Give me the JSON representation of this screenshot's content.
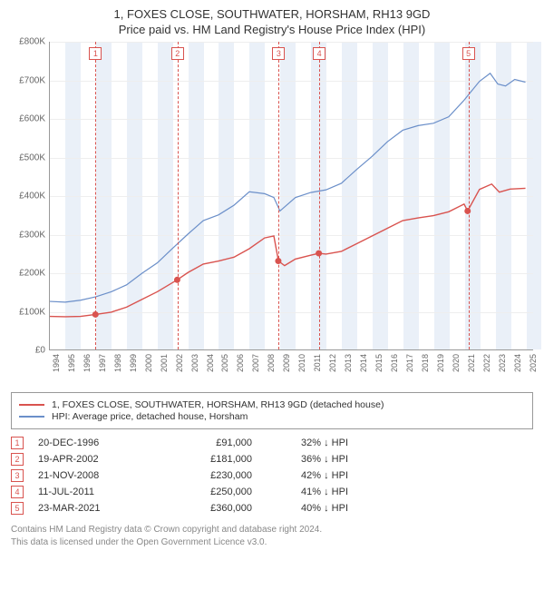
{
  "title_line1": "1, FOXES CLOSE, SOUTHWATER, HORSHAM, RH13 9GD",
  "title_line2": "Price paid vs. HM Land Registry's House Price Index (HPI)",
  "chart": {
    "type": "line",
    "background_color": "#ffffff",
    "band_color": "#eaf0f8",
    "grid_color": "#eeeeee",
    "axis_color": "#999999",
    "x_years": [
      1994,
      1995,
      1996,
      1997,
      1998,
      1999,
      2000,
      2001,
      2002,
      2003,
      2004,
      2005,
      2006,
      2007,
      2008,
      2009,
      2010,
      2011,
      2012,
      2013,
      2014,
      2015,
      2016,
      2017,
      2018,
      2019,
      2020,
      2021,
      2022,
      2023,
      2024,
      2025
    ],
    "x_min": 1994,
    "x_max": 2025.5,
    "y_min": 0,
    "y_max": 800000,
    "y_step": 100000,
    "y_tick_labels": [
      "£0",
      "£100K",
      "£200K",
      "£300K",
      "£400K",
      "£500K",
      "£600K",
      "£700K",
      "£800K"
    ],
    "series": [
      {
        "name": "price_paid",
        "color": "#d9534f",
        "width": 1.4,
        "data": [
          [
            1994.0,
            86000
          ],
          [
            1995.0,
            85000
          ],
          [
            1996.0,
            86000
          ],
          [
            1996.97,
            91000
          ],
          [
            1998.0,
            97000
          ],
          [
            1999.0,
            110000
          ],
          [
            2000.0,
            130000
          ],
          [
            2001.0,
            150000
          ],
          [
            2002.3,
            181000
          ],
          [
            2003.0,
            200000
          ],
          [
            2004.0,
            222000
          ],
          [
            2005.0,
            230000
          ],
          [
            2006.0,
            240000
          ],
          [
            2007.0,
            262000
          ],
          [
            2008.0,
            290000
          ],
          [
            2008.6,
            295000
          ],
          [
            2008.9,
            230000
          ],
          [
            2009.3,
            218000
          ],
          [
            2010.0,
            235000
          ],
          [
            2011.0,
            245000
          ],
          [
            2011.53,
            250000
          ],
          [
            2012.0,
            248000
          ],
          [
            2013.0,
            255000
          ],
          [
            2014.0,
            275000
          ],
          [
            2015.0,
            295000
          ],
          [
            2016.0,
            315000
          ],
          [
            2017.0,
            335000
          ],
          [
            2018.0,
            342000
          ],
          [
            2019.0,
            348000
          ],
          [
            2020.0,
            358000
          ],
          [
            2021.0,
            378000
          ],
          [
            2021.23,
            360000
          ],
          [
            2022.0,
            416000
          ],
          [
            2022.8,
            430000
          ],
          [
            2023.3,
            409000
          ],
          [
            2024.0,
            417000
          ],
          [
            2025.0,
            419000
          ]
        ]
      },
      {
        "name": "hpi",
        "color": "#6b8fc9",
        "width": 1.2,
        "data": [
          [
            1994.0,
            125000
          ],
          [
            1995.0,
            123000
          ],
          [
            1996.0,
            128000
          ],
          [
            1997.0,
            137000
          ],
          [
            1998.0,
            150000
          ],
          [
            1999.0,
            168000
          ],
          [
            2000.0,
            198000
          ],
          [
            2001.0,
            225000
          ],
          [
            2002.0,
            263000
          ],
          [
            2003.0,
            300000
          ],
          [
            2004.0,
            335000
          ],
          [
            2005.0,
            350000
          ],
          [
            2006.0,
            375000
          ],
          [
            2007.0,
            410000
          ],
          [
            2008.0,
            405000
          ],
          [
            2008.6,
            395000
          ],
          [
            2009.0,
            360000
          ],
          [
            2010.0,
            395000
          ],
          [
            2011.0,
            408000
          ],
          [
            2012.0,
            415000
          ],
          [
            2013.0,
            432000
          ],
          [
            2014.0,
            468000
          ],
          [
            2015.0,
            502000
          ],
          [
            2016.0,
            540000
          ],
          [
            2017.0,
            570000
          ],
          [
            2018.0,
            582000
          ],
          [
            2019.0,
            588000
          ],
          [
            2020.0,
            605000
          ],
          [
            2021.0,
            648000
          ],
          [
            2022.0,
            697000
          ],
          [
            2022.7,
            718000
          ],
          [
            2023.2,
            690000
          ],
          [
            2023.7,
            685000
          ],
          [
            2024.3,
            702000
          ],
          [
            2025.0,
            695000
          ]
        ]
      }
    ],
    "events": [
      {
        "n": "1",
        "year": 1996.97,
        "price": 91000
      },
      {
        "n": "2",
        "year": 2002.3,
        "price": 181000
      },
      {
        "n": "3",
        "year": 2008.89,
        "price": 230000
      },
      {
        "n": "4",
        "year": 2011.53,
        "price": 250000
      },
      {
        "n": "5",
        "year": 2021.23,
        "price": 360000
      }
    ]
  },
  "legend": {
    "items": [
      {
        "color": "#d9534f",
        "label": "1, FOXES CLOSE, SOUTHWATER, HORSHAM, RH13 9GD (detached house)"
      },
      {
        "color": "#6b8fc9",
        "label": "HPI: Average price, detached house, Horsham"
      }
    ]
  },
  "events_table": [
    {
      "n": "1",
      "date": "20-DEC-1996",
      "price": "£91,000",
      "pct": "32% ↓ HPI"
    },
    {
      "n": "2",
      "date": "19-APR-2002",
      "price": "£181,000",
      "pct": "36% ↓ HPI"
    },
    {
      "n": "3",
      "date": "21-NOV-2008",
      "price": "£230,000",
      "pct": "42% ↓ HPI"
    },
    {
      "n": "4",
      "date": "11-JUL-2011",
      "price": "£250,000",
      "pct": "41% ↓ HPI"
    },
    {
      "n": "5",
      "date": "23-MAR-2021",
      "price": "£360,000",
      "pct": "40% ↓ HPI"
    }
  ],
  "footnote_line1": "Contains HM Land Registry data © Crown copyright and database right 2024.",
  "footnote_line2": "This data is licensed under the Open Government Licence v3.0."
}
